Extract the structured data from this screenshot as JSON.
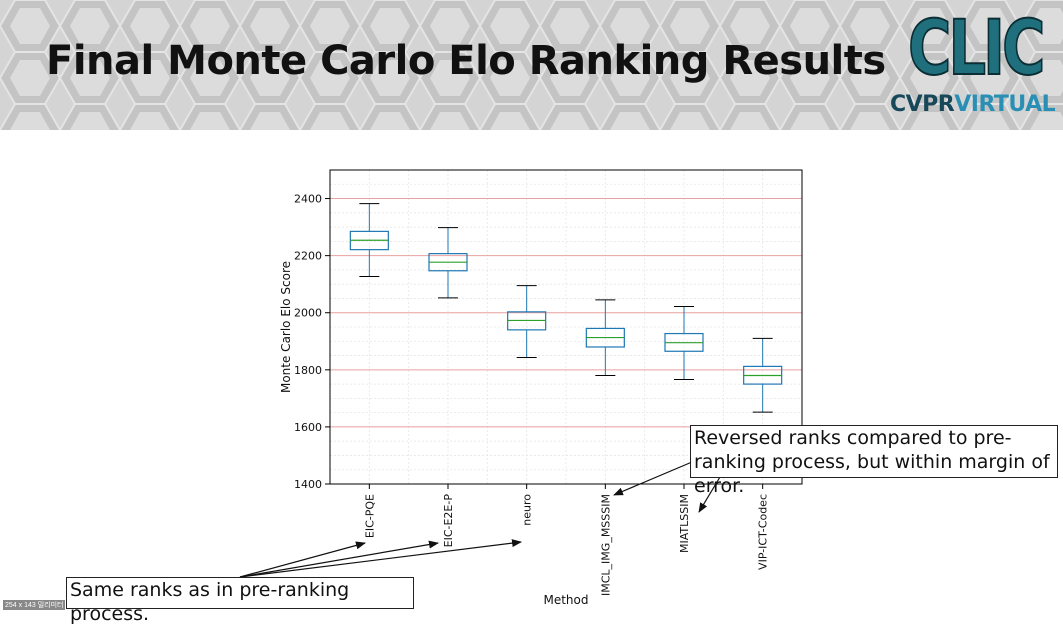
{
  "slide": {
    "title": "Final Monte Carlo Elo Ranking Results"
  },
  "logo": {
    "main": "CLIC",
    "sub_prefix": "C",
    "sub_mid": "VPR",
    "sub_accent": "VIRTUAL"
  },
  "callouts": {
    "reversed": "Reversed ranks compared to pre-ranking process, but within margin of error.",
    "same": "Same ranks as in pre-ranking process."
  },
  "thumbnail_label": "254 x 143 밀리미터",
  "colors": {
    "box": "#1f77b4",
    "median": "#2ca02c",
    "grid": "#e8a0a0",
    "frame": "#000000"
  },
  "chart_data": {
    "type": "box",
    "title": "",
    "xlabel": "Method",
    "ylabel": "Monte Carlo Elo Score",
    "ylim": [
      1400,
      2500
    ],
    "yticks": [
      1400,
      1600,
      1800,
      2000,
      2200,
      2400
    ],
    "grid": true,
    "categories": [
      "EIC-PQE",
      "EIC-E2E-P",
      "neuro",
      "IMCL_IMG_MSSSIM",
      "MIATLSSIM",
      "VIP-ICT-Codec"
    ],
    "boxes": [
      {
        "label": "EIC-PQE",
        "whisker_low": 2127,
        "q1": 2221,
        "median": 2254,
        "q3": 2285,
        "whisker_high": 2382
      },
      {
        "label": "EIC-E2E-P",
        "whisker_low": 2052,
        "q1": 2147,
        "median": 2177,
        "q3": 2207,
        "whisker_high": 2298
      },
      {
        "label": "neuro",
        "whisker_low": 1843,
        "q1": 1940,
        "median": 1973,
        "q3": 2003,
        "whisker_high": 2095
      },
      {
        "label": "IMCL_IMG_MSSSIM",
        "whisker_low": 1780,
        "q1": 1880,
        "median": 1913,
        "q3": 1945,
        "whisker_high": 2045
      },
      {
        "label": "MIATLSSIM",
        "whisker_low": 1766,
        "q1": 1865,
        "median": 1895,
        "q3": 1927,
        "whisker_high": 2022
      },
      {
        "label": "VIP-ICT-Codec",
        "whisker_low": 1652,
        "q1": 1750,
        "median": 1780,
        "q3": 1812,
        "whisker_high": 1910
      }
    ]
  }
}
